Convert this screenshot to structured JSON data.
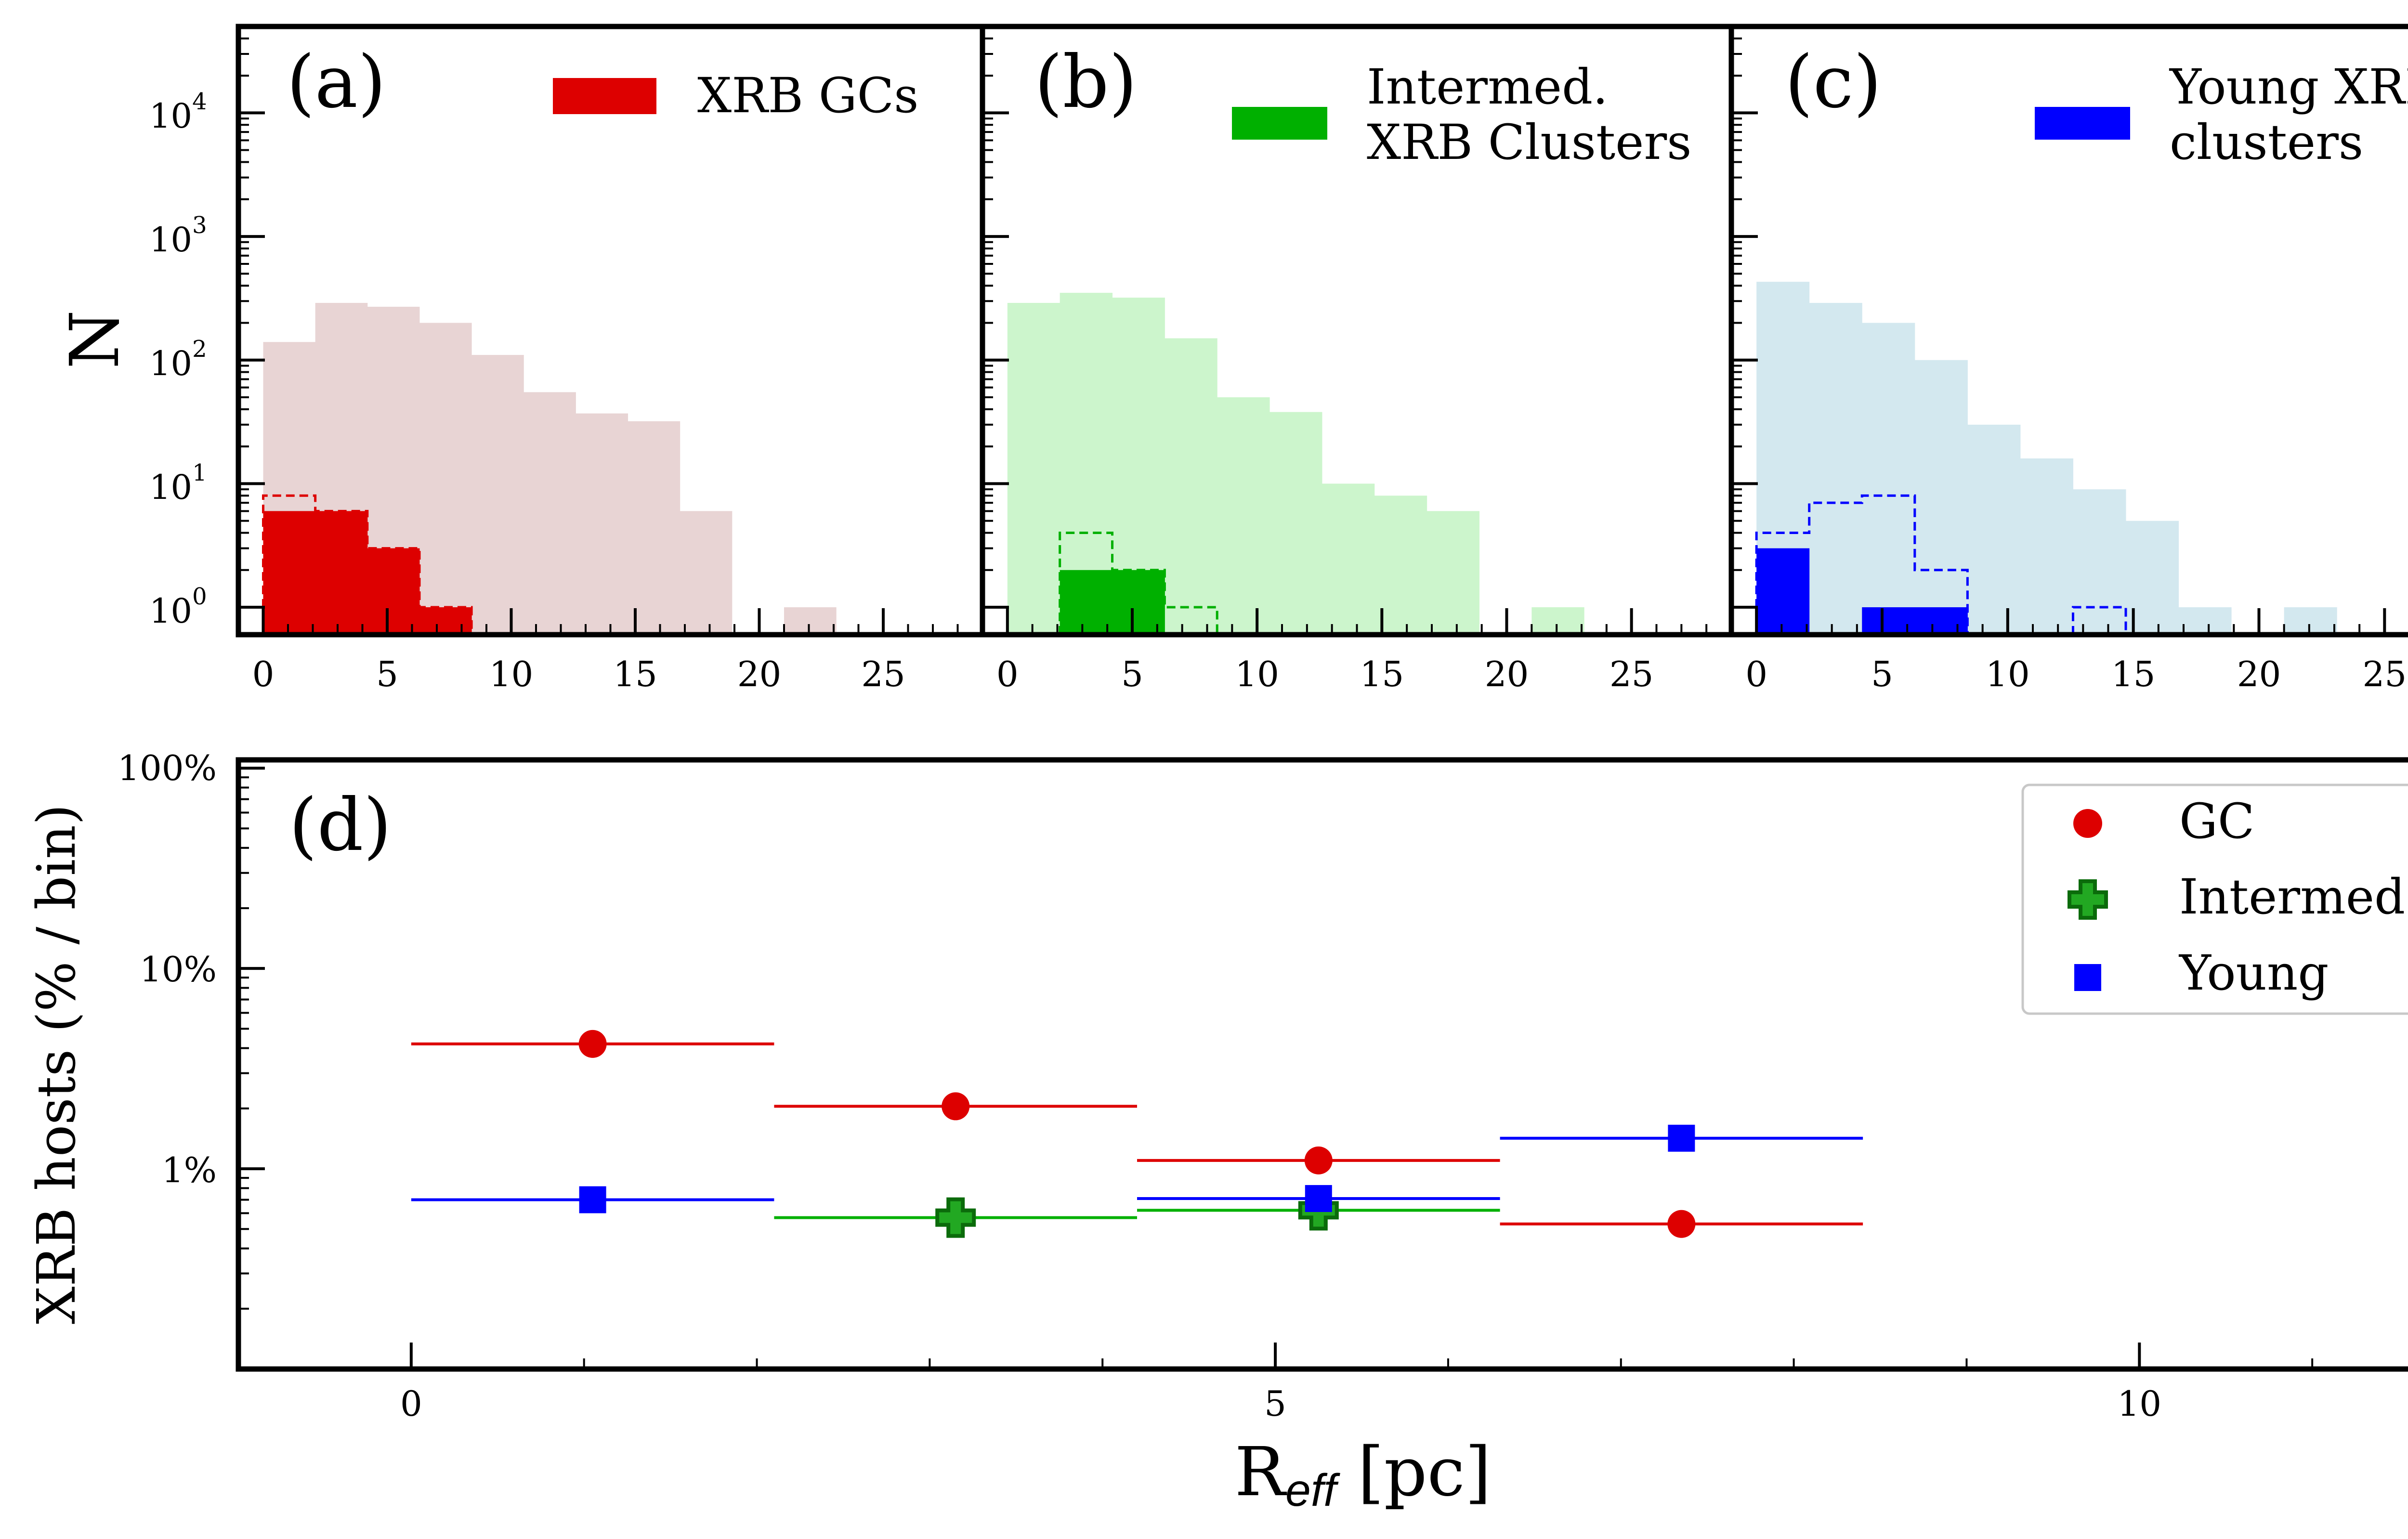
{
  "colors": {
    "gc": "#dd0000",
    "gc_bg": "#e8d4d4",
    "inter": "#00b000",
    "inter_bg": "#ccf5cc",
    "young": "#0000ff",
    "young_bg": "#d3e8ef"
  },
  "chart_data": [
    {
      "type": "histogram",
      "panel_label": "(a)",
      "legend": [
        "XRB GCs"
      ],
      "ylabel": "N",
      "yscale": "log",
      "ylim": [
        0.6,
        50000
      ],
      "xlim": [
        -1,
        29
      ],
      "xticks": [
        "0",
        "5",
        "10",
        "15",
        "20",
        "25"
      ],
      "yticks": [
        "10^0",
        "10^1",
        "10^2",
        "10^3",
        "10^4"
      ],
      "bin_edges": [
        0,
        2.1,
        4.2,
        6.3,
        8.4,
        10.5,
        12.6,
        14.7,
        16.8,
        18.9,
        21.0,
        23.1
      ],
      "all_clusters": [
        140,
        290,
        270,
        200,
        110,
        55,
        37,
        32,
        6,
        0,
        1
      ],
      "xrb_hosts": [
        6,
        6,
        3,
        1,
        0,
        0,
        0,
        0,
        0,
        0,
        0
      ],
      "xrb_hosts_dashed": [
        8,
        6,
        3,
        1,
        0,
        0,
        0,
        0,
        0,
        0,
        0
      ]
    },
    {
      "type": "histogram",
      "panel_label": "(b)",
      "legend": [
        "Intermed.",
        "XRB Clusters"
      ],
      "yscale": "log",
      "ylim": [
        0.6,
        50000
      ],
      "xlim": [
        -1,
        29
      ],
      "xticks": [
        "0",
        "5",
        "10",
        "15",
        "20",
        "25"
      ],
      "bin_edges": [
        0,
        2.1,
        4.2,
        6.3,
        8.4,
        10.5,
        12.6,
        14.7,
        16.8,
        18.9,
        21.0,
        23.1
      ],
      "all_clusters": [
        290,
        350,
        320,
        150,
        50,
        38,
        10,
        8,
        6,
        0,
        1
      ],
      "xrb_hosts": [
        0,
        2,
        2,
        0,
        0,
        0,
        0,
        0,
        0,
        0,
        0
      ],
      "xrb_hosts_dashed": [
        0,
        4,
        2,
        1,
        0,
        0,
        0,
        0,
        0,
        0,
        0
      ]
    },
    {
      "type": "histogram",
      "panel_label": "(c)",
      "legend": [
        "Young XRB",
        "clusters"
      ],
      "yscale": "log",
      "ylim": [
        0.6,
        50000
      ],
      "xlim": [
        -1,
        29
      ],
      "xticks": [
        "0",
        "5",
        "10",
        "15",
        "20",
        "25"
      ],
      "bin_edges": [
        0,
        2.1,
        4.2,
        6.3,
        8.4,
        10.5,
        12.6,
        14.7,
        16.8,
        18.9,
        21.0,
        23.1
      ],
      "all_clusters": [
        430,
        290,
        200,
        100,
        30,
        16,
        9,
        5,
        1,
        0,
        1
      ],
      "xrb_hosts": [
        3,
        0,
        1,
        1,
        0,
        0,
        0,
        0,
        0,
        0,
        0
      ],
      "xrb_hosts_dashed": [
        4,
        7,
        8,
        2,
        0,
        0,
        1,
        0,
        0,
        0,
        0
      ]
    },
    {
      "type": "scatter",
      "panel_label": "(d)",
      "xlabel": "R",
      "xlabel_sub": "eff",
      "xlabel_unit": " [pc]",
      "ylabel": "XRB hosts (% / bin)",
      "yscale": "log",
      "ylim": [
        0.1,
        110
      ],
      "xlim": [
        -1,
        12
      ],
      "xticks": [
        "0",
        "5",
        "10"
      ],
      "yticks": [
        "1%",
        "10%",
        "100%"
      ],
      "series": [
        {
          "name": "GC",
          "marker": "circle",
          "x": [
            1.05,
            3.15,
            5.25,
            7.35
          ],
          "y": [
            4.2,
            2.05,
            1.1,
            0.53
          ],
          "xerr": 1.05
        },
        {
          "name": "Intermed.",
          "marker": "plus",
          "x": [
            3.15,
            5.25
          ],
          "y": [
            0.57,
            0.62
          ],
          "xerr": 1.05
        },
        {
          "name": "Young",
          "marker": "square",
          "x": [
            1.05,
            5.25,
            7.35
          ],
          "y": [
            0.7,
            0.71,
            1.42
          ],
          "xerr": 1.05
        }
      ],
      "legend": [
        "GC",
        "Intermed.",
        "Young"
      ]
    }
  ]
}
